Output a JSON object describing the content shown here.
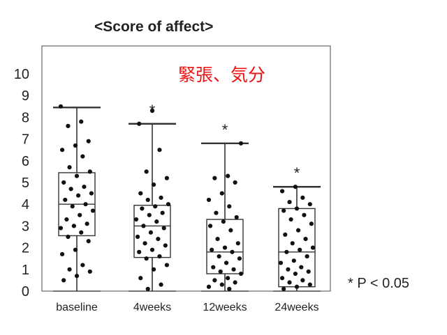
{
  "chart_data": {
    "type": "box",
    "title": "<Score of affect>",
    "subtitle": "緊張、気分",
    "footnote": "* P < 0.05",
    "ylim": [
      0,
      10
    ],
    "yticks": [
      "0",
      "1",
      "2",
      "3",
      "4",
      "5",
      "6",
      "7",
      "8",
      "9",
      "10"
    ],
    "categories": [
      "baseline",
      "4weeks",
      "12weeks",
      "24weeks"
    ],
    "significance_marks": [
      "",
      "*",
      "*",
      "*"
    ],
    "boxes": [
      {
        "min": 0,
        "q1": 2.55,
        "median": 4.0,
        "q3": 5.45,
        "max": 8.45
      },
      {
        "min": 0,
        "q1": 1.55,
        "median": 3.0,
        "q3": 3.95,
        "max": 7.7
      },
      {
        "min": 0,
        "q1": 0.8,
        "median": 1.8,
        "q3": 3.3,
        "max": 6.8
      },
      {
        "min": 0,
        "q1": 0.2,
        "median": 1.8,
        "q3": 3.8,
        "max": 4.8
      }
    ],
    "points": [
      [
        8.5,
        7.8,
        7.6,
        6.9,
        6.7,
        6.5,
        6.2,
        5.7,
        5.5,
        5.3,
        5.0,
        4.8,
        4.7,
        4.5,
        4.4,
        4.2,
        4.0,
        3.9,
        3.7,
        3.5,
        3.3,
        3.1,
        3.0,
        2.9,
        2.7,
        2.5,
        2.3,
        1.9,
        1.7,
        1.2,
        1.0,
        0.9,
        0.7,
        0.5
      ],
      [
        8.3,
        7.7,
        6.5,
        5.5,
        5.2,
        4.9,
        4.5,
        4.3,
        4.2,
        4.0,
        3.9,
        3.8,
        3.6,
        3.5,
        3.3,
        3.2,
        3.0,
        2.9,
        2.7,
        2.5,
        2.4,
        2.2,
        2.1,
        1.9,
        1.8,
        1.6,
        1.5,
        1.2,
        1.0,
        0.6,
        0.3,
        0.1
      ],
      [
        6.8,
        5.3,
        5.2,
        5.0,
        4.5,
        4.2,
        3.9,
        3.6,
        3.4,
        3.2,
        3.0,
        2.8,
        2.4,
        2.2,
        2.0,
        1.9,
        1.8,
        1.6,
        1.5,
        1.3,
        1.1,
        1.0,
        0.9,
        0.8,
        0.6,
        0.5,
        0.4,
        0.3,
        0.2,
        0.1
      ],
      [
        4.8,
        4.6,
        4.3,
        4.1,
        4.0,
        3.8,
        3.7,
        3.5,
        3.3,
        3.1,
        2.8,
        2.6,
        2.4,
        2.2,
        2.0,
        1.9,
        1.8,
        1.6,
        1.4,
        1.3,
        1.1,
        1.0,
        0.9,
        0.8,
        0.6,
        0.5,
        0.4,
        0.3,
        0.2,
        0.1
      ]
    ]
  }
}
